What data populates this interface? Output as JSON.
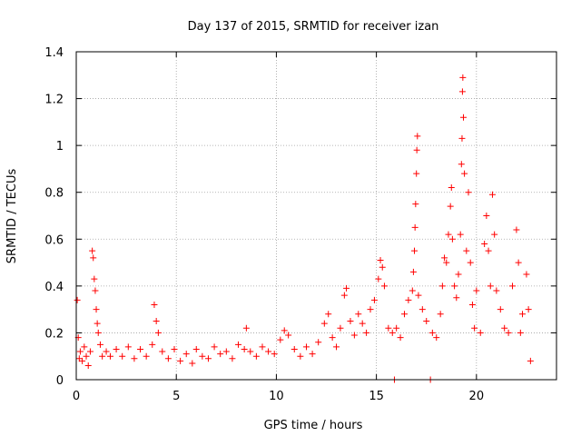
{
  "chart_data": {
    "type": "scatter",
    "title": "Day 137 of 2015, SRMTID for receiver izan",
    "xlabel": "GPS time / hours",
    "ylabel": "SRMTID / TECUs",
    "xlim": [
      0,
      24
    ],
    "ylim": [
      0,
      1.4
    ],
    "xticks": [
      0,
      5,
      10,
      15,
      20
    ],
    "xtick_labels": [
      "0",
      "5",
      "10",
      "15",
      "20"
    ],
    "yticks": [
      0,
      0.2,
      0.4,
      0.6,
      0.8,
      1.0,
      1.2,
      1.4
    ],
    "ytick_labels": [
      "0",
      "0.2",
      "0.4",
      "0.6",
      "0.8",
      "1",
      "1.2",
      "1.4"
    ],
    "grid": true,
    "marker": "+",
    "color": "#ff0000",
    "series": [
      {
        "name": "SRMTID",
        "points": [
          [
            0.05,
            0.34
          ],
          [
            0.1,
            0.18
          ],
          [
            0.15,
            0.09
          ],
          [
            0.2,
            0.12
          ],
          [
            0.3,
            0.08
          ],
          [
            0.4,
            0.14
          ],
          [
            0.5,
            0.1
          ],
          [
            0.6,
            0.06
          ],
          [
            0.7,
            0.12
          ],
          [
            0.8,
            0.55
          ],
          [
            0.85,
            0.52
          ],
          [
            0.9,
            0.43
          ],
          [
            0.95,
            0.38
          ],
          [
            1.0,
            0.3
          ],
          [
            1.05,
            0.24
          ],
          [
            1.1,
            0.2
          ],
          [
            1.2,
            0.15
          ],
          [
            1.3,
            0.1
          ],
          [
            1.5,
            0.12
          ],
          [
            1.7,
            0.1
          ],
          [
            2.0,
            0.13
          ],
          [
            2.3,
            0.1
          ],
          [
            2.6,
            0.14
          ],
          [
            2.9,
            0.09
          ],
          [
            3.2,
            0.13
          ],
          [
            3.5,
            0.1
          ],
          [
            3.8,
            0.15
          ],
          [
            3.9,
            0.32
          ],
          [
            4.0,
            0.25
          ],
          [
            4.1,
            0.2
          ],
          [
            4.3,
            0.12
          ],
          [
            4.6,
            0.09
          ],
          [
            4.9,
            0.13
          ],
          [
            5.2,
            0.08
          ],
          [
            5.5,
            0.11
          ],
          [
            5.8,
            0.07
          ],
          [
            6.0,
            0.13
          ],
          [
            6.3,
            0.1
          ],
          [
            6.6,
            0.09
          ],
          [
            6.9,
            0.14
          ],
          [
            7.2,
            0.11
          ],
          [
            7.5,
            0.12
          ],
          [
            7.8,
            0.09
          ],
          [
            8.1,
            0.15
          ],
          [
            8.4,
            0.13
          ],
          [
            8.5,
            0.22
          ],
          [
            8.7,
            0.12
          ],
          [
            9.0,
            0.1
          ],
          [
            9.3,
            0.14
          ],
          [
            9.6,
            0.12
          ],
          [
            9.9,
            0.11
          ],
          [
            10.2,
            0.17
          ],
          [
            10.4,
            0.21
          ],
          [
            10.6,
            0.19
          ],
          [
            10.9,
            0.13
          ],
          [
            11.2,
            0.1
          ],
          [
            11.5,
            0.14
          ],
          [
            11.8,
            0.11
          ],
          [
            12.1,
            0.16
          ],
          [
            12.4,
            0.24
          ],
          [
            12.6,
            0.28
          ],
          [
            12.8,
            0.18
          ],
          [
            13.0,
            0.14
          ],
          [
            13.2,
            0.22
          ],
          [
            13.4,
            0.36
          ],
          [
            13.5,
            0.39
          ],
          [
            13.7,
            0.25
          ],
          [
            13.9,
            0.19
          ],
          [
            14.1,
            0.28
          ],
          [
            14.3,
            0.24
          ],
          [
            14.5,
            0.2
          ],
          [
            14.7,
            0.3
          ],
          [
            14.9,
            0.34
          ],
          [
            15.1,
            0.43
          ],
          [
            15.2,
            0.51
          ],
          [
            15.3,
            0.48
          ],
          [
            15.4,
            0.4
          ],
          [
            15.6,
            0.22
          ],
          [
            15.8,
            0.2
          ],
          [
            15.9,
            0.0
          ],
          [
            16.0,
            0.22
          ],
          [
            16.2,
            0.18
          ],
          [
            16.4,
            0.28
          ],
          [
            16.6,
            0.34
          ],
          [
            16.8,
            0.38
          ],
          [
            16.85,
            0.46
          ],
          [
            16.9,
            0.55
          ],
          [
            16.93,
            0.65
          ],
          [
            16.96,
            0.75
          ],
          [
            17.0,
            0.88
          ],
          [
            17.02,
            0.98
          ],
          [
            17.05,
            1.04
          ],
          [
            17.1,
            0.36
          ],
          [
            17.3,
            0.3
          ],
          [
            17.5,
            0.25
          ],
          [
            17.7,
            0.0
          ],
          [
            17.8,
            0.2
          ],
          [
            18.0,
            0.18
          ],
          [
            18.2,
            0.28
          ],
          [
            18.3,
            0.4
          ],
          [
            18.4,
            0.52
          ],
          [
            18.5,
            0.5
          ],
          [
            18.6,
            0.62
          ],
          [
            18.7,
            0.74
          ],
          [
            18.75,
            0.82
          ],
          [
            18.8,
            0.6
          ],
          [
            18.9,
            0.4
          ],
          [
            19.0,
            0.35
          ],
          [
            19.1,
            0.45
          ],
          [
            19.2,
            0.62
          ],
          [
            19.25,
            0.92
          ],
          [
            19.28,
            1.03
          ],
          [
            19.3,
            1.23
          ],
          [
            19.32,
            1.29
          ],
          [
            19.35,
            1.12
          ],
          [
            19.4,
            0.88
          ],
          [
            19.5,
            0.55
          ],
          [
            19.6,
            0.8
          ],
          [
            19.7,
            0.5
          ],
          [
            19.8,
            0.32
          ],
          [
            19.9,
            0.22
          ],
          [
            20.0,
            0.38
          ],
          [
            20.2,
            0.2
          ],
          [
            20.4,
            0.58
          ],
          [
            20.5,
            0.7
          ],
          [
            20.6,
            0.55
          ],
          [
            20.7,
            0.4
          ],
          [
            20.8,
            0.79
          ],
          [
            20.9,
            0.62
          ],
          [
            21.0,
            0.38
          ],
          [
            21.2,
            0.3
          ],
          [
            21.4,
            0.22
          ],
          [
            21.6,
            0.2
          ],
          [
            21.8,
            0.4
          ],
          [
            22.0,
            0.64
          ],
          [
            22.1,
            0.5
          ],
          [
            22.2,
            0.2
          ],
          [
            22.3,
            0.28
          ],
          [
            22.5,
            0.45
          ],
          [
            22.6,
            0.3
          ],
          [
            22.7,
            0.08
          ]
        ]
      }
    ]
  }
}
